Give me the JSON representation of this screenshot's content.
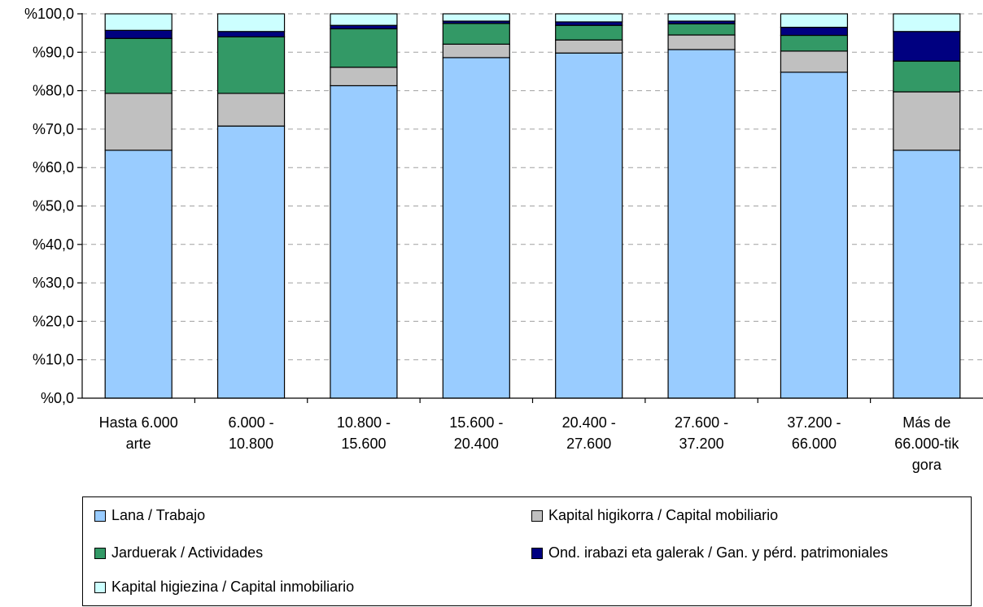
{
  "chart_data": {
    "type": "bar",
    "stacked": true,
    "categories": [
      [
        "Hasta 6.000",
        "arte"
      ],
      [
        "6.000 -",
        "10.800"
      ],
      [
        "10.800 -",
        "15.600"
      ],
      [
        "15.600 -",
        "20.400"
      ],
      [
        "20.400 -",
        "27.600"
      ],
      [
        "27.600 -",
        "37.200"
      ],
      [
        "37.200 -",
        "66.000"
      ],
      [
        "Más de",
        "66.000-tik",
        "gora"
      ]
    ],
    "series": [
      {
        "name": "Lana / Trabajo",
        "color": "#99ccff",
        "values": [
          64.5,
          70.8,
          81.3,
          88.6,
          89.8,
          90.7,
          84.8,
          64.5
        ]
      },
      {
        "name": "Kapital higikorra / Capital mobiliario",
        "color": "#c0c0c0",
        "values": [
          14.8,
          8.5,
          4.8,
          3.5,
          3.4,
          3.8,
          5.5,
          15.2
        ]
      },
      {
        "name": "Jarduerak / Actividades",
        "color": "#339966",
        "values": [
          14.3,
          14.7,
          10.0,
          5.4,
          3.8,
          2.9,
          4.1,
          8.0
        ]
      },
      {
        "name": "Ond. irabazi eta galerak / Gan. y pérd. patrimoniales",
        "color": "#000080",
        "values": [
          2.1,
          1.4,
          0.9,
          0.6,
          0.9,
          0.7,
          2.1,
          7.7
        ]
      },
      {
        "name": "Kapital higiezina / Capital inmobiliario",
        "color": "#ccffff",
        "values": [
          4.3,
          4.6,
          3.0,
          1.9,
          2.1,
          1.9,
          3.5,
          4.6
        ]
      }
    ],
    "yticks": [
      "%0,0",
      "%10,0",
      "%20,0",
      "%30,0",
      "%40,0",
      "%50,0",
      "%60,0",
      "%70,0",
      "%80,0",
      "%90,0",
      "%100,0"
    ],
    "ylim": [
      0,
      100
    ],
    "grid": true,
    "legend_position": "bottom"
  }
}
